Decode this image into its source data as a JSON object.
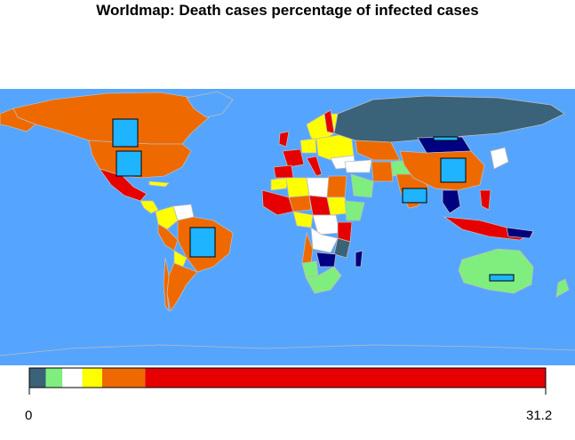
{
  "title": "Worldmap: Death cases percentage of infected cases",
  "colors": {
    "ocean": "#55A5FF",
    "border": "#BBBBBB",
    "bubble_fill": "#1EB4FF",
    "bubble_stroke": "#000000"
  },
  "legend": {
    "min_label": "0",
    "max_label": "31.2",
    "bins": [
      {
        "color": "#3A6278",
        "from": 0,
        "to": 1
      },
      {
        "color": "#7FEE7F",
        "from": 1,
        "to": 2
      },
      {
        "color": "#FFFFFF",
        "from": 2,
        "to": 3.2
      },
      {
        "color": "#FFFF00",
        "from": 3.2,
        "to": 4.4
      },
      {
        "color": "#EE6A00",
        "from": 4.4,
        "to": 7
      },
      {
        "color": "#E60000",
        "from": 7,
        "to": 31.2
      }
    ]
  },
  "bubbles": [
    {
      "region": "Canada"
    },
    {
      "region": "United States"
    },
    {
      "region": "Brazil"
    },
    {
      "region": "Mongolia"
    },
    {
      "region": "China"
    },
    {
      "region": "India"
    },
    {
      "region": "Australia"
    }
  ]
}
